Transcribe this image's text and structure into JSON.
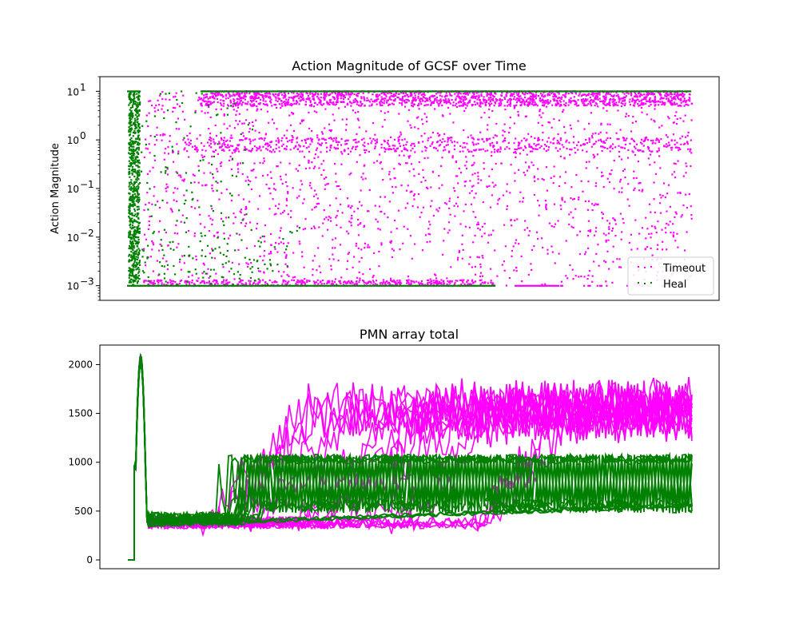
{
  "chart_data": [
    {
      "type": "scatter",
      "title": "Action Magnitude of GCSF over Time",
      "xlabel": "",
      "ylabel": "Action Magnitude",
      "yscale": "log",
      "ylim": [
        0.0005,
        20
      ],
      "y_ticks": [
        {
          "value": 0.001,
          "base": "10",
          "exp": "−3"
        },
        {
          "value": 0.01,
          "base": "10",
          "exp": "−2"
        },
        {
          "value": 0.1,
          "base": "10",
          "exp": "−1"
        },
        {
          "value": 1,
          "base": "10",
          "exp": "0"
        },
        {
          "value": 10,
          "base": "10",
          "exp": "1"
        }
      ],
      "x_ticks_visible": false,
      "grid": false,
      "legend": {
        "placement": "lower-right",
        "entries": [
          "Timeout",
          "Heal"
        ]
      },
      "series": [
        {
          "name": "Timeout",
          "color": "#ff00ff",
          "marker": "point",
          "value_levels": [
            0.001,
            1,
            10
          ],
          "range": [
            0.001,
            10
          ]
        },
        {
          "name": "Heal",
          "color": "#008000",
          "marker": "point",
          "value_levels": [
            0.001,
            1,
            10
          ],
          "range": [
            0.001,
            10
          ]
        }
      ]
    },
    {
      "type": "line",
      "title": "PMN array total",
      "xlabel": "",
      "ylabel": "",
      "ylim": [
        -90,
        2200
      ],
      "y_ticks": [
        "0",
        "500",
        "1000",
        "1500",
        "2000"
      ],
      "x_ticks_visible": false,
      "grid": false,
      "series": [
        {
          "name": "",
          "color": "#ff00ff",
          "initial": 0,
          "peak": 2080,
          "baseline": 350,
          "late_plateau": 1500,
          "late_range": [
            1200,
            2030
          ]
        },
        {
          "name": "",
          "color": "#008000",
          "initial": 0,
          "peak": 2080,
          "baseline": 350,
          "upper_level": 1050,
          "lower_level": 520
        }
      ]
    }
  ]
}
